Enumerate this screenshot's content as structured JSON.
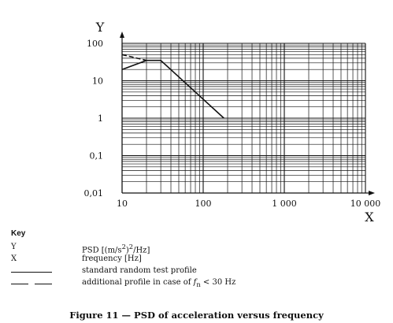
{
  "chart_data": {
    "type": "line",
    "xscale": "log",
    "yscale": "log",
    "xlim": [
      10,
      10000
    ],
    "ylim": [
      0.01,
      100
    ],
    "xlabel": "X",
    "ylabel": "Y",
    "grid": true,
    "xtick_labels": [
      {
        "value": 10,
        "label": "10"
      },
      {
        "value": 100,
        "label": "100"
      },
      {
        "value": 1000,
        "label": "1 000"
      },
      {
        "value": 10000,
        "label": "10 000"
      }
    ],
    "ytick_labels": [
      {
        "value": 100,
        "label": "100"
      },
      {
        "value": 10,
        "label": "10"
      },
      {
        "value": 1,
        "label": "1"
      },
      {
        "value": 0.1,
        "label": "0,1"
      },
      {
        "value": 0.01,
        "label": "0,01"
      }
    ],
    "series": [
      {
        "style": "solid",
        "x": [
          10,
          20,
          30,
          180
        ],
        "y": [
          20,
          35,
          35,
          1
        ]
      },
      {
        "style": "dashed",
        "x": [
          10,
          20
        ],
        "y": [
          50,
          35
        ]
      }
    ]
  },
  "key": {
    "title": "Key",
    "rows": [
      {
        "symbol": "Y",
        "desc_parts": [
          "PSD [(m/s",
          "2",
          ")",
          "2",
          "/Hz]"
        ]
      },
      {
        "symbol": "X",
        "desc": "frequency [Hz]"
      },
      {
        "line": "solid",
        "desc": "standard random test profile"
      },
      {
        "line": "dashed",
        "desc_pre": "additional profile in case of ",
        "desc_var": "f",
        "desc_sub": "n",
        "desc_post": " < 30 Hz"
      }
    ]
  },
  "caption": "Figure 11 — PSD of acceleration versus frequency"
}
